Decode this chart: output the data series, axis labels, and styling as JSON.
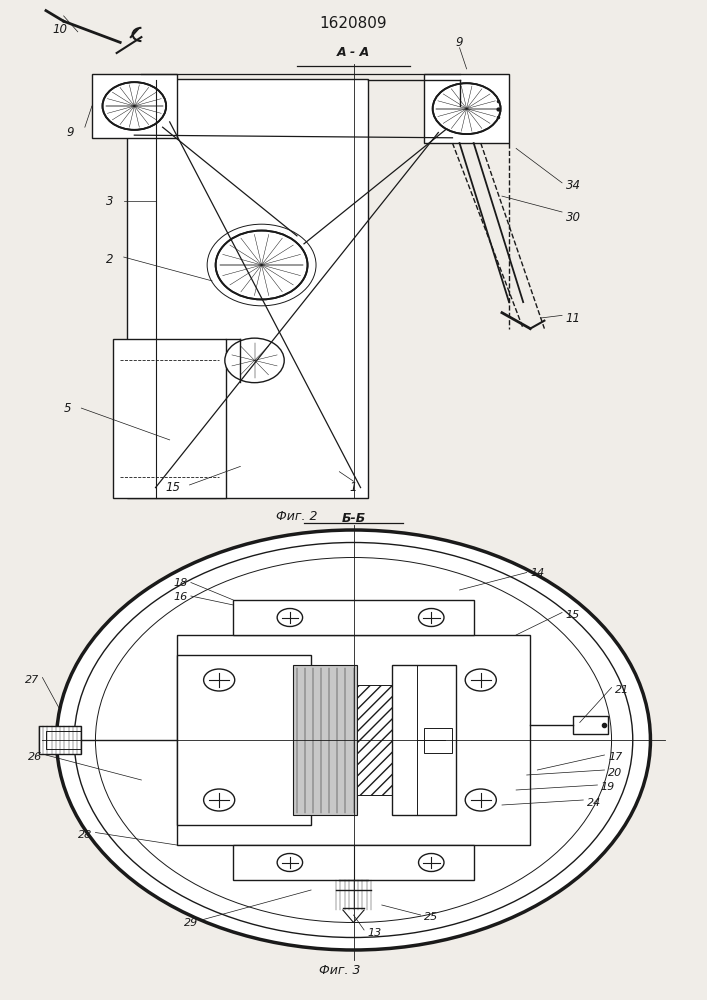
{
  "title": "1620809",
  "bg_color": "#f0ede8",
  "line_color": "#1a1a1a",
  "fig2_caption": "Фиг. 2",
  "fig3_caption": "Фиг. 3",
  "fig2_aa": "А - А",
  "fig3_bb": "Б-Б"
}
